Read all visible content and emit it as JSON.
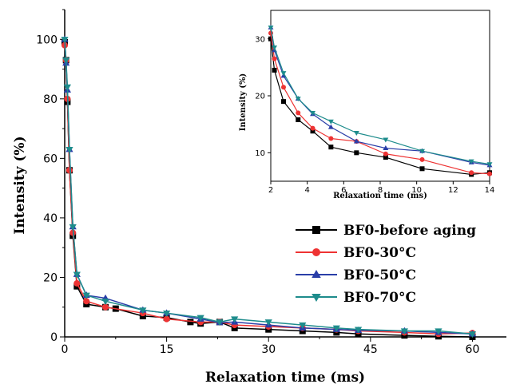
{
  "chart_data": [
    {
      "type": "line",
      "xlabel": "Relaxation time (ms)",
      "ylabel": "Intensity (%)",
      "xlim": [
        0,
        65
      ],
      "ylim": [
        0,
        110
      ],
      "xticks": [
        0,
        15,
        30,
        45,
        60
      ],
      "yticks": [
        0,
        20,
        40,
        60,
        80,
        100
      ],
      "legend_position": "center-right",
      "series": [
        {
          "name": "BF0-before aging",
          "color": "#000000",
          "marker": "square",
          "x": [
            0,
            0.2,
            0.4,
            0.7,
            1.2,
            1.8,
            3.2,
            6,
            7.5,
            11.5,
            15,
            18.5,
            20,
            22.8,
            25,
            30,
            35,
            40,
            43.2,
            50,
            55,
            60
          ],
          "y": [
            99,
            93,
            79,
            56,
            34,
            17,
            11,
            10,
            9.5,
            7,
            6.5,
            5,
            4.5,
            5,
            3,
            2.5,
            2,
            1.5,
            1,
            0.5,
            0.2,
            0
          ]
        },
        {
          "name": "BF0-30°C",
          "color": "#ee3333",
          "marker": "circle",
          "x": [
            0,
            0.2,
            0.4,
            0.7,
            1.2,
            1.8,
            3.2,
            6,
            11.5,
            15,
            20,
            22.8,
            25,
            30,
            35,
            40,
            43.2,
            50,
            55,
            60
          ],
          "y": [
            98,
            93,
            80,
            56,
            35,
            18,
            12,
            10,
            8,
            6,
            5,
            5,
            4,
            3.5,
            3,
            2.5,
            2,
            1.5,
            1,
            1.3
          ]
        },
        {
          "name": "BF0-50°C",
          "color": "#2a3ea8",
          "marker": "triangle-up",
          "x": [
            0,
            0.2,
            0.4,
            0.7,
            1.2,
            1.8,
            3.2,
            6,
            11.5,
            15,
            20,
            22.8,
            25,
            30,
            35,
            40,
            43.2,
            50,
            55,
            60
          ],
          "y": [
            100,
            92,
            83,
            63,
            37,
            21,
            14,
            13,
            9,
            8,
            6,
            4.8,
            5,
            4,
            3,
            2.5,
            2.2,
            2,
            1.5,
            1
          ]
        },
        {
          "name": "BF0-70°C",
          "color": "#1e8c8c",
          "marker": "triangle-down",
          "x": [
            0,
            0.2,
            0.4,
            0.7,
            1.2,
            1.8,
            3.2,
            6,
            11.5,
            15,
            20,
            22.8,
            25,
            30,
            35,
            40,
            43.2,
            50,
            55,
            60
          ],
          "y": [
            100,
            93,
            84,
            63,
            37,
            21,
            14,
            12,
            9,
            8,
            6.5,
            5,
            6,
            5,
            4,
            3,
            2.5,
            2,
            2,
            1
          ]
        }
      ]
    },
    {
      "type": "line",
      "inset": true,
      "xlabel": "Relaxation time (ms)",
      "ylabel": "Intensity (%)",
      "xlim": [
        2,
        14
      ],
      "ylim": [
        5,
        35
      ],
      "xticks": [
        2,
        4,
        6,
        8,
        10,
        12,
        14
      ],
      "yticks": [
        10,
        20,
        30
      ],
      "series": [
        {
          "name": "BF0-before aging",
          "color": "#000000",
          "marker": "square",
          "x": [
            2,
            2.2,
            2.7,
            3.5,
            4.3,
            5.3,
            6.7,
            8.3,
            10.3,
            13,
            14
          ],
          "y": [
            30,
            24.5,
            19,
            15.8,
            13.8,
            11,
            10,
            9.2,
            7.2,
            6.2,
            6.5
          ]
        },
        {
          "name": "BF0-30°C",
          "color": "#ee3333",
          "marker": "circle",
          "x": [
            2,
            2.2,
            2.7,
            3.5,
            4.3,
            5.3,
            6.7,
            8.3,
            10.3,
            13,
            14
          ],
          "y": [
            31,
            26.5,
            21.5,
            17,
            14.3,
            12.5,
            12,
            9.8,
            8.8,
            6.5,
            6.3
          ]
        },
        {
          "name": "BF0-50°C",
          "color": "#2a3ea8",
          "marker": "triangle-up",
          "x": [
            2,
            2.2,
            2.7,
            3.5,
            4.3,
            5.3,
            6.7,
            8.3,
            10.3,
            13,
            14
          ],
          "y": [
            32,
            28,
            23.5,
            19.5,
            16.8,
            14.5,
            12,
            10.8,
            10.3,
            8.3,
            7.8
          ]
        },
        {
          "name": "BF0-70°C",
          "color": "#1e8c8c",
          "marker": "triangle-down",
          "x": [
            2,
            2.2,
            2.7,
            3.5,
            4.3,
            5.3,
            6.7,
            8.3,
            10.3,
            13,
            14
          ],
          "y": [
            32,
            28.5,
            24,
            19.5,
            17,
            15.5,
            13.5,
            12.3,
            10.3,
            8.5,
            8
          ]
        }
      ]
    }
  ]
}
